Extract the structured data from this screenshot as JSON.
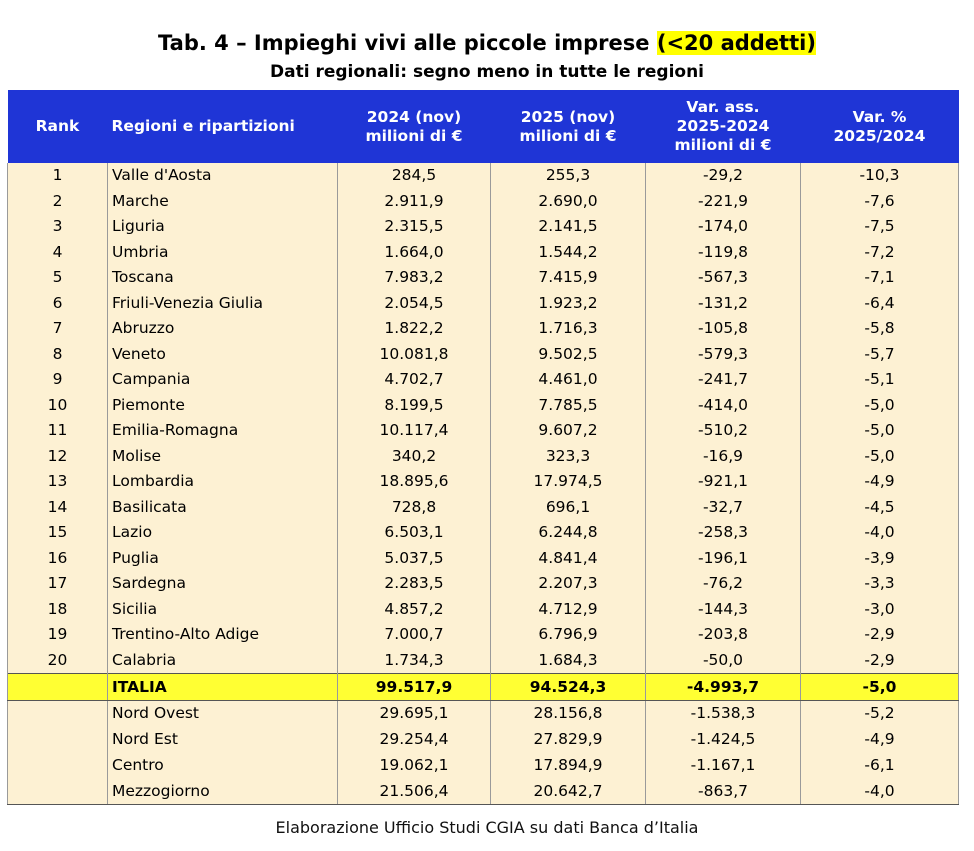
{
  "header": {
    "title": "Tab. 4 – Impieghi vivi alle piccole imprese",
    "title_highlight": "(<20 addetti)",
    "subtitle": "Dati regionali: segno meno in tutte le regioni"
  },
  "table": {
    "columns": [
      [
        "Rank"
      ],
      [
        "Regioni e ripartizioni"
      ],
      [
        "2024 (nov)",
        "milioni di €"
      ],
      [
        "2025 (nov)",
        "milioni di €"
      ],
      [
        "Var. ass.",
        "2025-2024",
        "milioni di €"
      ],
      [
        "Var. %",
        "2025/2024"
      ]
    ],
    "rows": [
      [
        "1",
        "Valle d'Aosta",
        "284,5",
        "255,3",
        "-29,2",
        "-10,3"
      ],
      [
        "2",
        "Marche",
        "2.911,9",
        "2.690,0",
        "-221,9",
        "-7,6"
      ],
      [
        "3",
        "Liguria",
        "2.315,5",
        "2.141,5",
        "-174,0",
        "-7,5"
      ],
      [
        "4",
        "Umbria",
        "1.664,0",
        "1.544,2",
        "-119,8",
        "-7,2"
      ],
      [
        "5",
        "Toscana",
        "7.983,2",
        "7.415,9",
        "-567,3",
        "-7,1"
      ],
      [
        "6",
        "Friuli-Venezia Giulia",
        "2.054,5",
        "1.923,2",
        "-131,2",
        "-6,4"
      ],
      [
        "7",
        "Abruzzo",
        "1.822,2",
        "1.716,3",
        "-105,8",
        "-5,8"
      ],
      [
        "8",
        "Veneto",
        "10.081,8",
        "9.502,5",
        "-579,3",
        "-5,7"
      ],
      [
        "9",
        "Campania",
        "4.702,7",
        "4.461,0",
        "-241,7",
        "-5,1"
      ],
      [
        "10",
        "Piemonte",
        "8.199,5",
        "7.785,5",
        "-414,0",
        "-5,0"
      ],
      [
        "11",
        "Emilia-Romagna",
        "10.117,4",
        "9.607,2",
        "-510,2",
        "-5,0"
      ],
      [
        "12",
        "Molise",
        "340,2",
        "323,3",
        "-16,9",
        "-5,0"
      ],
      [
        "13",
        "Lombardia",
        "18.895,6",
        "17.974,5",
        "-921,1",
        "-4,9"
      ],
      [
        "14",
        "Basilicata",
        "728,8",
        "696,1",
        "-32,7",
        "-4,5"
      ],
      [
        "15",
        "Lazio",
        "6.503,1",
        "6.244,8",
        "-258,3",
        "-4,0"
      ],
      [
        "16",
        "Puglia",
        "5.037,5",
        "4.841,4",
        "-196,1",
        "-3,9"
      ],
      [
        "17",
        "Sardegna",
        "2.283,5",
        "2.207,3",
        "-76,2",
        "-3,3"
      ],
      [
        "18",
        "Sicilia",
        "4.857,2",
        "4.712,9",
        "-144,3",
        "-3,0"
      ],
      [
        "19",
        "Trentino-Alto Adige",
        "7.000,7",
        "6.796,9",
        "-203,8",
        "-2,9"
      ],
      [
        "20",
        "Calabria",
        "1.734,3",
        "1.684,3",
        "-50,0",
        "-2,9"
      ]
    ],
    "total": [
      "ITALIA",
      "99.517,9",
      "94.524,3",
      "-4.993,7",
      "-5,0"
    ],
    "areas": [
      [
        "Nord Ovest",
        "29.695,1",
        "28.156,8",
        "-1.538,3",
        "-5,2"
      ],
      [
        "Nord Est",
        "29.254,4",
        "27.829,9",
        "-1.424,5",
        "-4,9"
      ],
      [
        "Centro",
        "19.062,1",
        "17.894,9",
        "-1.167,1",
        "-6,1"
      ],
      [
        "Mezzogiorno",
        "21.506,4",
        "20.642,7",
        "-863,7",
        "-4,0"
      ]
    ]
  },
  "footer": {
    "source": "Elaborazione Ufficio Studi CGIA su dati Banca d’Italia"
  }
}
